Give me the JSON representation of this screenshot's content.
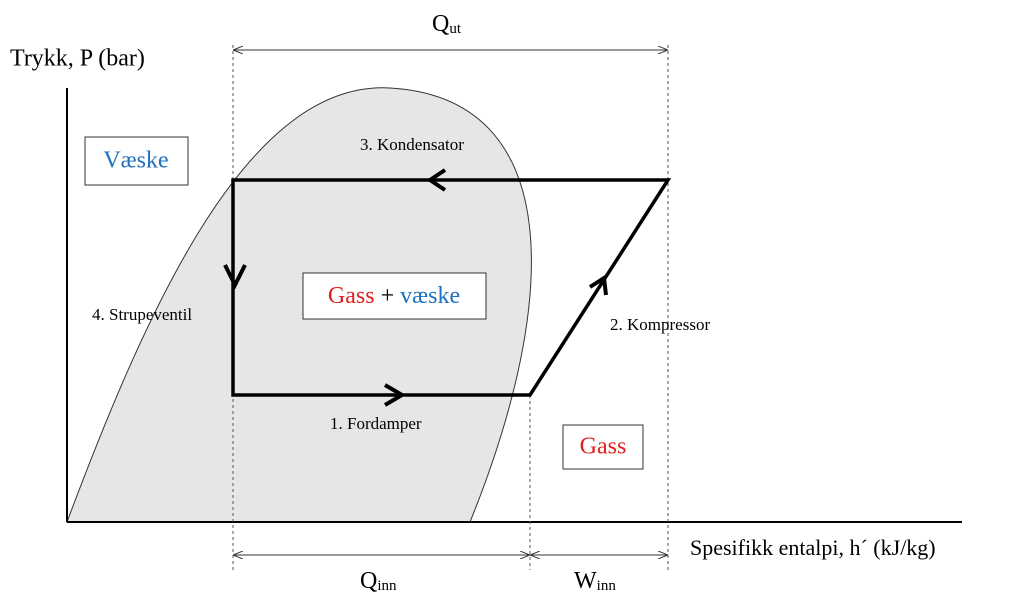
{
  "axes": {
    "y_label": "Trykk, P (bar)",
    "x_label": "Spesifikk entalpi, h´ (kJ/kg)"
  },
  "heat": {
    "q_out": {
      "symbol": "Q",
      "subscript": "ut"
    },
    "q_in": {
      "symbol": "Q",
      "subscript": "inn"
    },
    "w_in": {
      "symbol": "W",
      "subscript": "inn"
    }
  },
  "regions": {
    "liquid": "Væske",
    "mixture": {
      "gas": "Gass",
      "plus": "+",
      "liquid": "væske"
    },
    "gas": "Gass"
  },
  "steps": [
    "1. Fordamper",
    "2. Kompressor",
    "3. Kondensator",
    "4. Strupeventil"
  ]
}
